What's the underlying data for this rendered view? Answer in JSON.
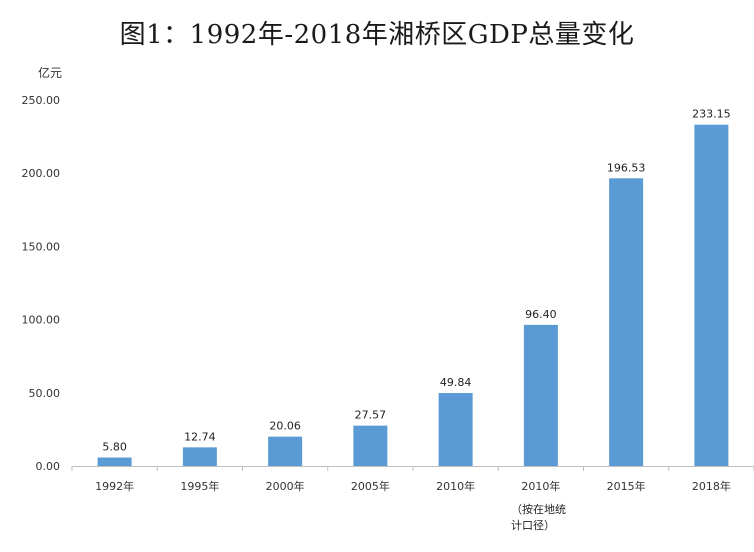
{
  "chart_data": {
    "type": "bar",
    "title": "图1：1992年-2018年湘桥区GDP总量变化",
    "ylabel": "亿元",
    "xlabel": "",
    "ylim": [
      0,
      250
    ],
    "yticks": [
      "0.00",
      "50.00",
      "100.00",
      "150.00",
      "200.00",
      "250.00"
    ],
    "categories": [
      "1992年",
      "1995年",
      "2000年",
      "2005年",
      "2010年",
      "2010年",
      "2015年",
      "2018年"
    ],
    "category_notes": [
      "",
      "",
      "",
      "",
      "",
      "（按在地统计口径）",
      "",
      ""
    ],
    "values": [
      5.8,
      12.74,
      20.06,
      27.57,
      49.84,
      96.4,
      196.53,
      233.15
    ],
    "data_labels": [
      "5.80",
      "12.74",
      "20.06",
      "27.57",
      "49.84",
      "96.40",
      "196.53",
      "233.15"
    ],
    "bar_color": "#5b9bd5",
    "grid": false,
    "legend": "none"
  },
  "note": {
    "line1": "（按在地统",
    "line2": "计口径）"
  }
}
